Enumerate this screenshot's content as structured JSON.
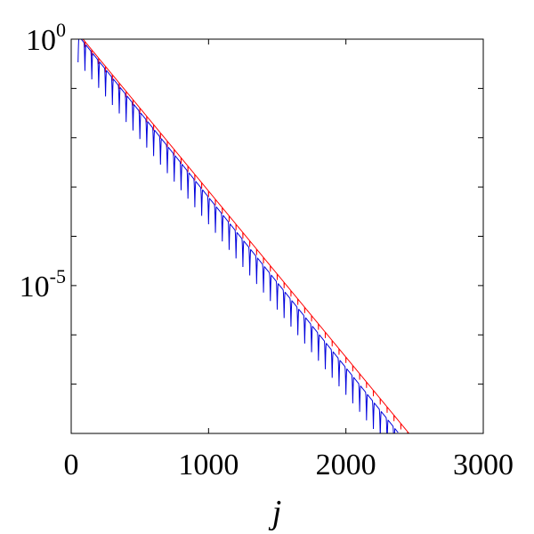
{
  "chart_data": {
    "type": "line",
    "title": "",
    "xlabel": "j",
    "ylabel": "",
    "xlim": [
      0,
      3000
    ],
    "ylim_log10": [
      -8,
      0
    ],
    "yscale": "log",
    "grid": false,
    "legend": "none",
    "x_ticks": [
      {
        "value": 0,
        "label": "0"
      },
      {
        "value": 1000,
        "label": "1000"
      },
      {
        "value": 2000,
        "label": "2000"
      },
      {
        "value": 3000,
        "label": "3000"
      }
    ],
    "y_ticks": [
      {
        "log10": 0,
        "base": "10",
        "exp": "0"
      },
      {
        "log10": -5,
        "base": "10",
        "exp": "-5"
      }
    ],
    "y_minor_ticks_log10": [
      -1,
      -2,
      -3,
      -4,
      -6,
      -7
    ],
    "series": [
      {
        "color": "#ff0000",
        "x_start": 50,
        "x_end": 2460,
        "log10_at_start": 0.12,
        "log10_per_1000": -3.37,
        "period": 50,
        "dip_depth": 0.12,
        "dip_width_fraction": 0.05
      },
      {
        "color": "#0000dd",
        "x_start": 50,
        "x_end": 2380,
        "log10_at_start": 0.08,
        "log10_per_1000": -3.46,
        "period": 50,
        "dip_depth": 0.55,
        "dip_width_fraction": 0.3
      }
    ]
  }
}
